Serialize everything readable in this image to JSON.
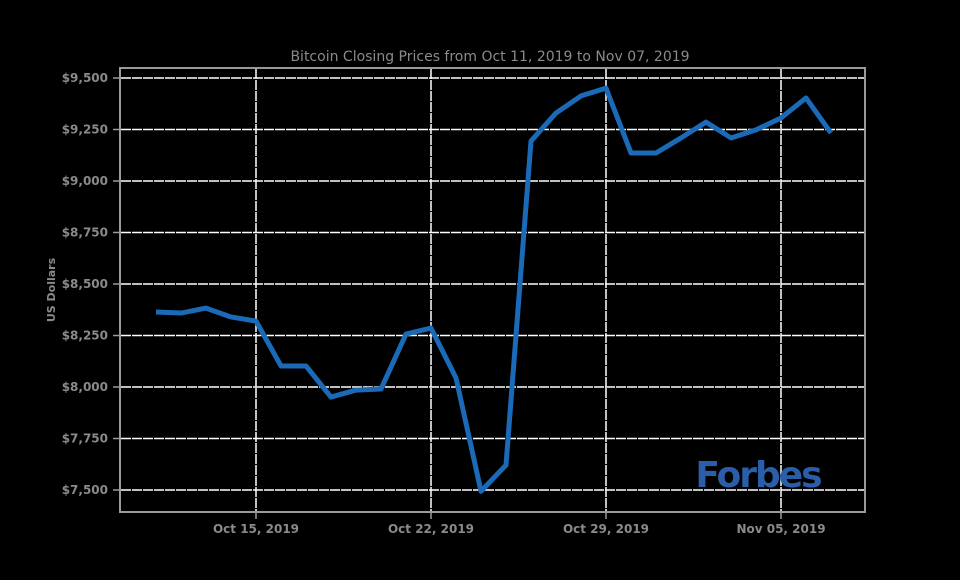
{
  "chart_data": {
    "type": "line",
    "title": "Bitcoin Closing Prices from Oct 11, 2019 to Nov 07, 2019",
    "xlabel": "",
    "ylabel": "US Dollars",
    "ylim": [
      7450,
      9550
    ],
    "yticks": [
      7500,
      7750,
      8000,
      8250,
      8500,
      8750,
      9000,
      9250,
      9500
    ],
    "ytick_labels": [
      "$7,500",
      "$7,750",
      "$8,000",
      "$8,250",
      "$8,500",
      "$8,750",
      "$9,000",
      "$9,250",
      "$9,500"
    ],
    "xticks": [
      "2019-10-15",
      "2019-10-22",
      "2019-10-29",
      "2019-11-05"
    ],
    "xtick_labels": [
      "Oct 15, 2019",
      "Oct 22, 2019",
      "Oct 29, 2019",
      "Nov 05, 2019"
    ],
    "xlim": [
      "2019-10-07",
      "2019-11-10"
    ],
    "grid": true,
    "series": [
      {
        "color": "#1a6ab8",
        "x": [
          "2019-10-11",
          "2019-10-12",
          "2019-10-13",
          "2019-10-14",
          "2019-10-15",
          "2019-10-16",
          "2019-10-17",
          "2019-10-18",
          "2019-10-19",
          "2019-10-20",
          "2019-10-21",
          "2019-10-22",
          "2019-10-23",
          "2019-10-24",
          "2019-10-25",
          "2019-10-26",
          "2019-10-27",
          "2019-10-28",
          "2019-10-29",
          "2019-10-30",
          "2019-10-31",
          "2019-11-01",
          "2019-11-02",
          "2019-11-03",
          "2019-11-04",
          "2019-11-05",
          "2019-11-06",
          "2019-11-07"
        ],
        "values": [
          8364,
          8359,
          8383,
          8340,
          8320,
          8102,
          8102,
          7951,
          7985,
          7990,
          8257,
          8286,
          8044,
          7494,
          7621,
          9194,
          9330,
          9413,
          9451,
          9136,
          9136,
          9209,
          9286,
          9209,
          9248,
          9306,
          9403,
          9233
        ]
      }
    ]
  },
  "watermark": "Forbes",
  "colors": {
    "background": "#000000",
    "grid": "#ffffff",
    "text": "#8a8a8a",
    "line": "#1a6ab8",
    "logo": "#2a5ea8"
  }
}
